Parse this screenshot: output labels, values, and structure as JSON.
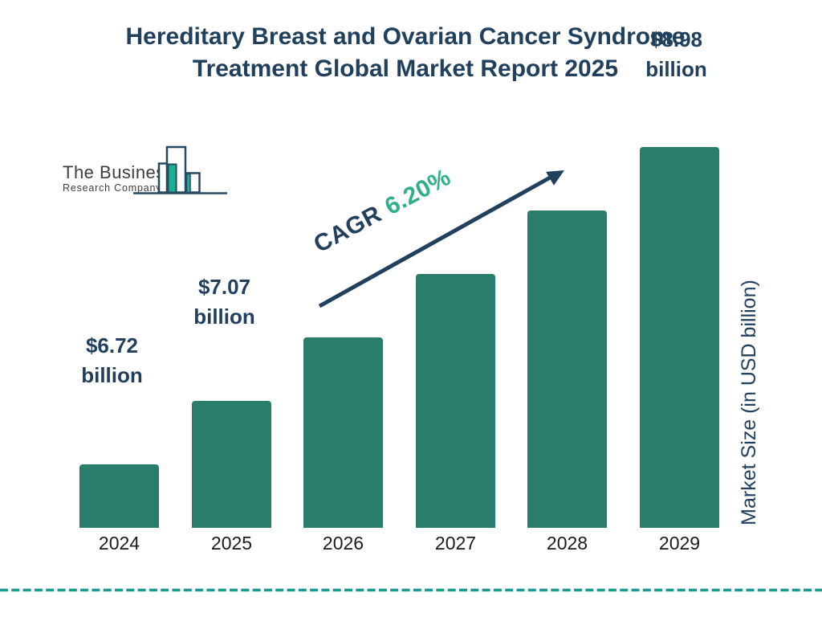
{
  "title": {
    "line1": "Hereditary Breast and Ovarian Cancer Syndrome",
    "line2": "Treatment Global Market Report 2025"
  },
  "logo": {
    "line1": "The Business",
    "line2": "Research Company"
  },
  "chart_data": {
    "type": "bar",
    "title": "Hereditary Breast and Ovarian Cancer Syndrome Treatment Global Market Report 2025",
    "categories": [
      "2024",
      "2025",
      "2026",
      "2027",
      "2028",
      "2029"
    ],
    "values": [
      6.72,
      7.07,
      null,
      null,
      null,
      8.98
    ],
    "unit": "USD billion",
    "value_labels": [
      {
        "value": "$6.72",
        "unit": "billion"
      },
      {
        "value": "$7.07",
        "unit": "billion"
      },
      null,
      null,
      null,
      {
        "value": "$8.98",
        "unit": "billion"
      }
    ],
    "cagr": {
      "label": "CAGR",
      "value": "6.20%"
    },
    "ylabel": "Market Size (in USD billion)",
    "xlabel": "",
    "legend": false,
    "grid": false
  },
  "colors": {
    "navy": "#21405E",
    "bar": "#2A7C6B",
    "green": "#2FB188",
    "dash": "#1D9B8E",
    "logo_teal": "#19B394",
    "logo_navy": "#264A63",
    "xlabel": "#1C1C1C",
    "logotext": "#3E3E3E"
  }
}
